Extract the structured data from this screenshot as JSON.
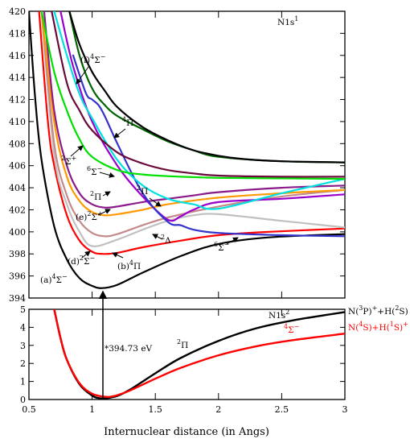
{
  "chart_data": [
    {
      "type": "line",
      "panel": "top",
      "title": "",
      "xlabel": "",
      "ylabel": "",
      "xlim": [
        0.5,
        3.0
      ],
      "ylim": [
        394,
        420
      ],
      "x_ticks": [
        0.5,
        1.0,
        1.5,
        2.0,
        2.5,
        3.0
      ],
      "y_ticks": [
        394,
        396,
        398,
        400,
        402,
        404,
        406,
        408,
        410,
        412,
        414,
        416,
        418,
        420
      ],
      "grid": false,
      "corner_label": "N1s1",
      "series": [
        {
          "color": "#000000",
          "x": [
            0.5,
            0.55,
            0.6,
            0.7,
            0.8,
            0.9,
            1.0,
            1.08,
            1.2,
            1.4,
            1.7,
            2.0,
            2.4,
            3.0
          ],
          "y": [
            420,
            412,
            406.5,
            400.5,
            397.5,
            395.8,
            395.1,
            394.9,
            395.2,
            396.3,
            397.8,
            398.9,
            399.5,
            399.8
          ]
        },
        {
          "color": "#ff0000",
          "x": [
            0.58,
            0.65,
            0.7,
            0.8,
            0.9,
            1.0,
            1.08,
            1.2,
            1.4,
            1.7,
            2.0,
            2.4,
            3.0
          ],
          "y": [
            420,
            410,
            406,
            401.5,
            399.2,
            398.2,
            398.0,
            398.1,
            398.6,
            399.2,
            399.7,
            400.0,
            400.3
          ]
        },
        {
          "color": "#c0c0c0",
          "x": [
            0.6,
            0.7,
            0.8,
            0.9,
            1.0,
            1.2,
            1.4,
            1.6,
            1.8,
            2.0,
            2.5,
            3.0
          ],
          "y": [
            420,
            407,
            402.5,
            400.0,
            398.7,
            399.3,
            400.2,
            401.0,
            401.5,
            401.6,
            401.0,
            400.4
          ]
        },
        {
          "color": "#c48a8a",
          "x": [
            0.6,
            0.7,
            0.8,
            0.9,
            1.0,
            1.1,
            1.2,
            1.4,
            1.6,
            2.0,
            2.5,
            3.0
          ],
          "y": [
            420,
            408,
            403.3,
            401.0,
            399.9,
            399.6,
            399.8,
            400.6,
            401.3,
            402.3,
            403.2,
            403.8
          ]
        },
        {
          "color": "#ff9900",
          "x": [
            0.6,
            0.7,
            0.8,
            0.9,
            1.0,
            1.1,
            1.2,
            1.4,
            1.6,
            2.0,
            2.5,
            3.0
          ],
          "y": [
            420,
            410,
            405,
            402.8,
            401.8,
            401.5,
            401.6,
            402.0,
            402.5,
            403.1,
            403.5,
            403.8
          ]
        },
        {
          "color": "#8b1a8b",
          "x": [
            0.62,
            0.7,
            0.8,
            0.9,
            1.0,
            1.1,
            1.2,
            1.4,
            1.6,
            1.8,
            2.0,
            2.5,
            3.0
          ],
          "y": [
            420,
            411,
            406,
            403.5,
            402.5,
            402.2,
            402.3,
            402.7,
            403.0,
            403.3,
            403.6,
            404.0,
            404.2
          ]
        },
        {
          "color": "#9900cc",
          "x": [
            0.75,
            0.85,
            1.0,
            1.2,
            1.4,
            1.6,
            1.7,
            1.8,
            2.0,
            2.5,
            3.0
          ],
          "y": [
            420,
            415,
            410,
            406,
            403.2,
            401.1,
            401.4,
            402.0,
            402.7,
            403.0,
            403.4
          ]
        },
        {
          "color": "#3333cc",
          "x": [
            0.85,
            0.95,
            1.0,
            1.05,
            1.1,
            1.2,
            1.4,
            1.6,
            1.7,
            1.8,
            2.0,
            2.5,
            3.0
          ],
          "y": [
            416,
            412.6,
            412.0,
            411.5,
            410.5,
            408.0,
            403.5,
            400.9,
            400.6,
            400.2,
            399.9,
            399.7,
            399.6
          ]
        },
        {
          "color": "#00e0e0",
          "x": [
            0.7,
            0.8,
            0.9,
            1.0,
            1.2,
            1.4,
            1.6,
            1.8,
            2.0,
            2.5,
            3.0
          ],
          "y": [
            420,
            416,
            412.5,
            410.3,
            406.5,
            404.2,
            403.0,
            402.5,
            402.1,
            403.5,
            404.8
          ]
        },
        {
          "color": "#00e000",
          "x": [
            0.6,
            0.7,
            0.8,
            0.9,
            1.0,
            1.2,
            1.4,
            1.7,
            2.0,
            2.5,
            3.0
          ],
          "y": [
            420,
            414.5,
            411,
            408.4,
            406.8,
            405.6,
            405.2,
            405.0,
            404.9,
            404.85,
            404.8
          ]
        },
        {
          "color": "#6a0a3a",
          "x": [
            0.68,
            0.8,
            0.9,
            1.0,
            1.2,
            1.4,
            1.6,
            1.8,
            2.0,
            2.5,
            3.0
          ],
          "y": [
            420,
            413.5,
            411,
            409.2,
            407.2,
            406.2,
            405.6,
            405.3,
            405.1,
            405.0,
            405.0
          ]
        },
        {
          "color": "#006400",
          "x": [
            0.82,
            0.9,
            1.0,
            1.1,
            1.2,
            1.4,
            1.6,
            1.8,
            2.0,
            2.5,
            3.0
          ],
          "y": [
            420,
            416,
            413,
            411.5,
            410.5,
            409.3,
            408.2,
            407.4,
            406.8,
            406.4,
            406.3
          ]
        },
        {
          "color": "#000000",
          "x": [
            0.82,
            0.9,
            1.0,
            1.1,
            1.2,
            1.4,
            1.6,
            1.8,
            2.0,
            2.2,
            2.5,
            3.0
          ],
          "y": [
            420,
            417,
            414.5,
            412.8,
            411.3,
            409.5,
            408.3,
            407.4,
            406.9,
            406.6,
            406.4,
            406.3
          ]
        }
      ],
      "annotations": [
        {
          "text": "(f)4Σ−"
        },
        {
          "text": "4Π"
        },
        {
          "text": "2Σ+"
        },
        {
          "text": "6Σ−"
        },
        {
          "text": "2Π"
        },
        {
          "text": "2Π"
        },
        {
          "text": "(e)2Σ+"
        },
        {
          "text": "2Δ"
        },
        {
          "text": "(d)2Σ−"
        },
        {
          "text": "(b)4Π"
        },
        {
          "text": "6Σ−"
        },
        {
          "text": "(a)4Σ−"
        }
      ]
    },
    {
      "type": "line",
      "panel": "bottom",
      "title": "",
      "xlabel": "Internuclear distance (in Angs)",
      "ylabel": "",
      "xlim": [
        0.5,
        3.0
      ],
      "ylim": [
        0,
        5
      ],
      "x_ticks": [
        0.5,
        1.0,
        1.5,
        2.0,
        2.5,
        3.0
      ],
      "y_ticks": [
        0,
        1,
        2,
        3,
        4,
        5
      ],
      "grid": false,
      "series": [
        {
          "name": "N1s2",
          "color": "#000000",
          "x": [
            0.7,
            0.75,
            0.8,
            0.9,
            1.0,
            1.05,
            1.1,
            1.2,
            1.3,
            1.5,
            1.7,
            2.0,
            2.3,
            2.6,
            3.0
          ],
          "y": [
            5.0,
            3.4,
            2.2,
            0.85,
            0.22,
            0.08,
            0.06,
            0.2,
            0.55,
            1.45,
            2.3,
            3.25,
            3.95,
            4.4,
            4.85
          ]
        },
        {
          "name": "4Σ−",
          "color": "#ff0000",
          "x": [
            0.7,
            0.75,
            0.8,
            0.9,
            1.0,
            1.1,
            1.15,
            1.2,
            1.3,
            1.5,
            1.7,
            2.0,
            2.3,
            2.6,
            3.0
          ],
          "y": [
            5.0,
            3.4,
            2.2,
            0.9,
            0.32,
            0.15,
            0.16,
            0.24,
            0.5,
            1.15,
            1.75,
            2.45,
            2.95,
            3.3,
            3.65
          ]
        }
      ],
      "annotations": [
        {
          "text": "*394.73 eV"
        },
        {
          "text": "2Π"
        },
        {
          "text": "N(3P)++H(2S)"
        },
        {
          "text": "N(4S)+H(1S)+"
        }
      ]
    }
  ]
}
